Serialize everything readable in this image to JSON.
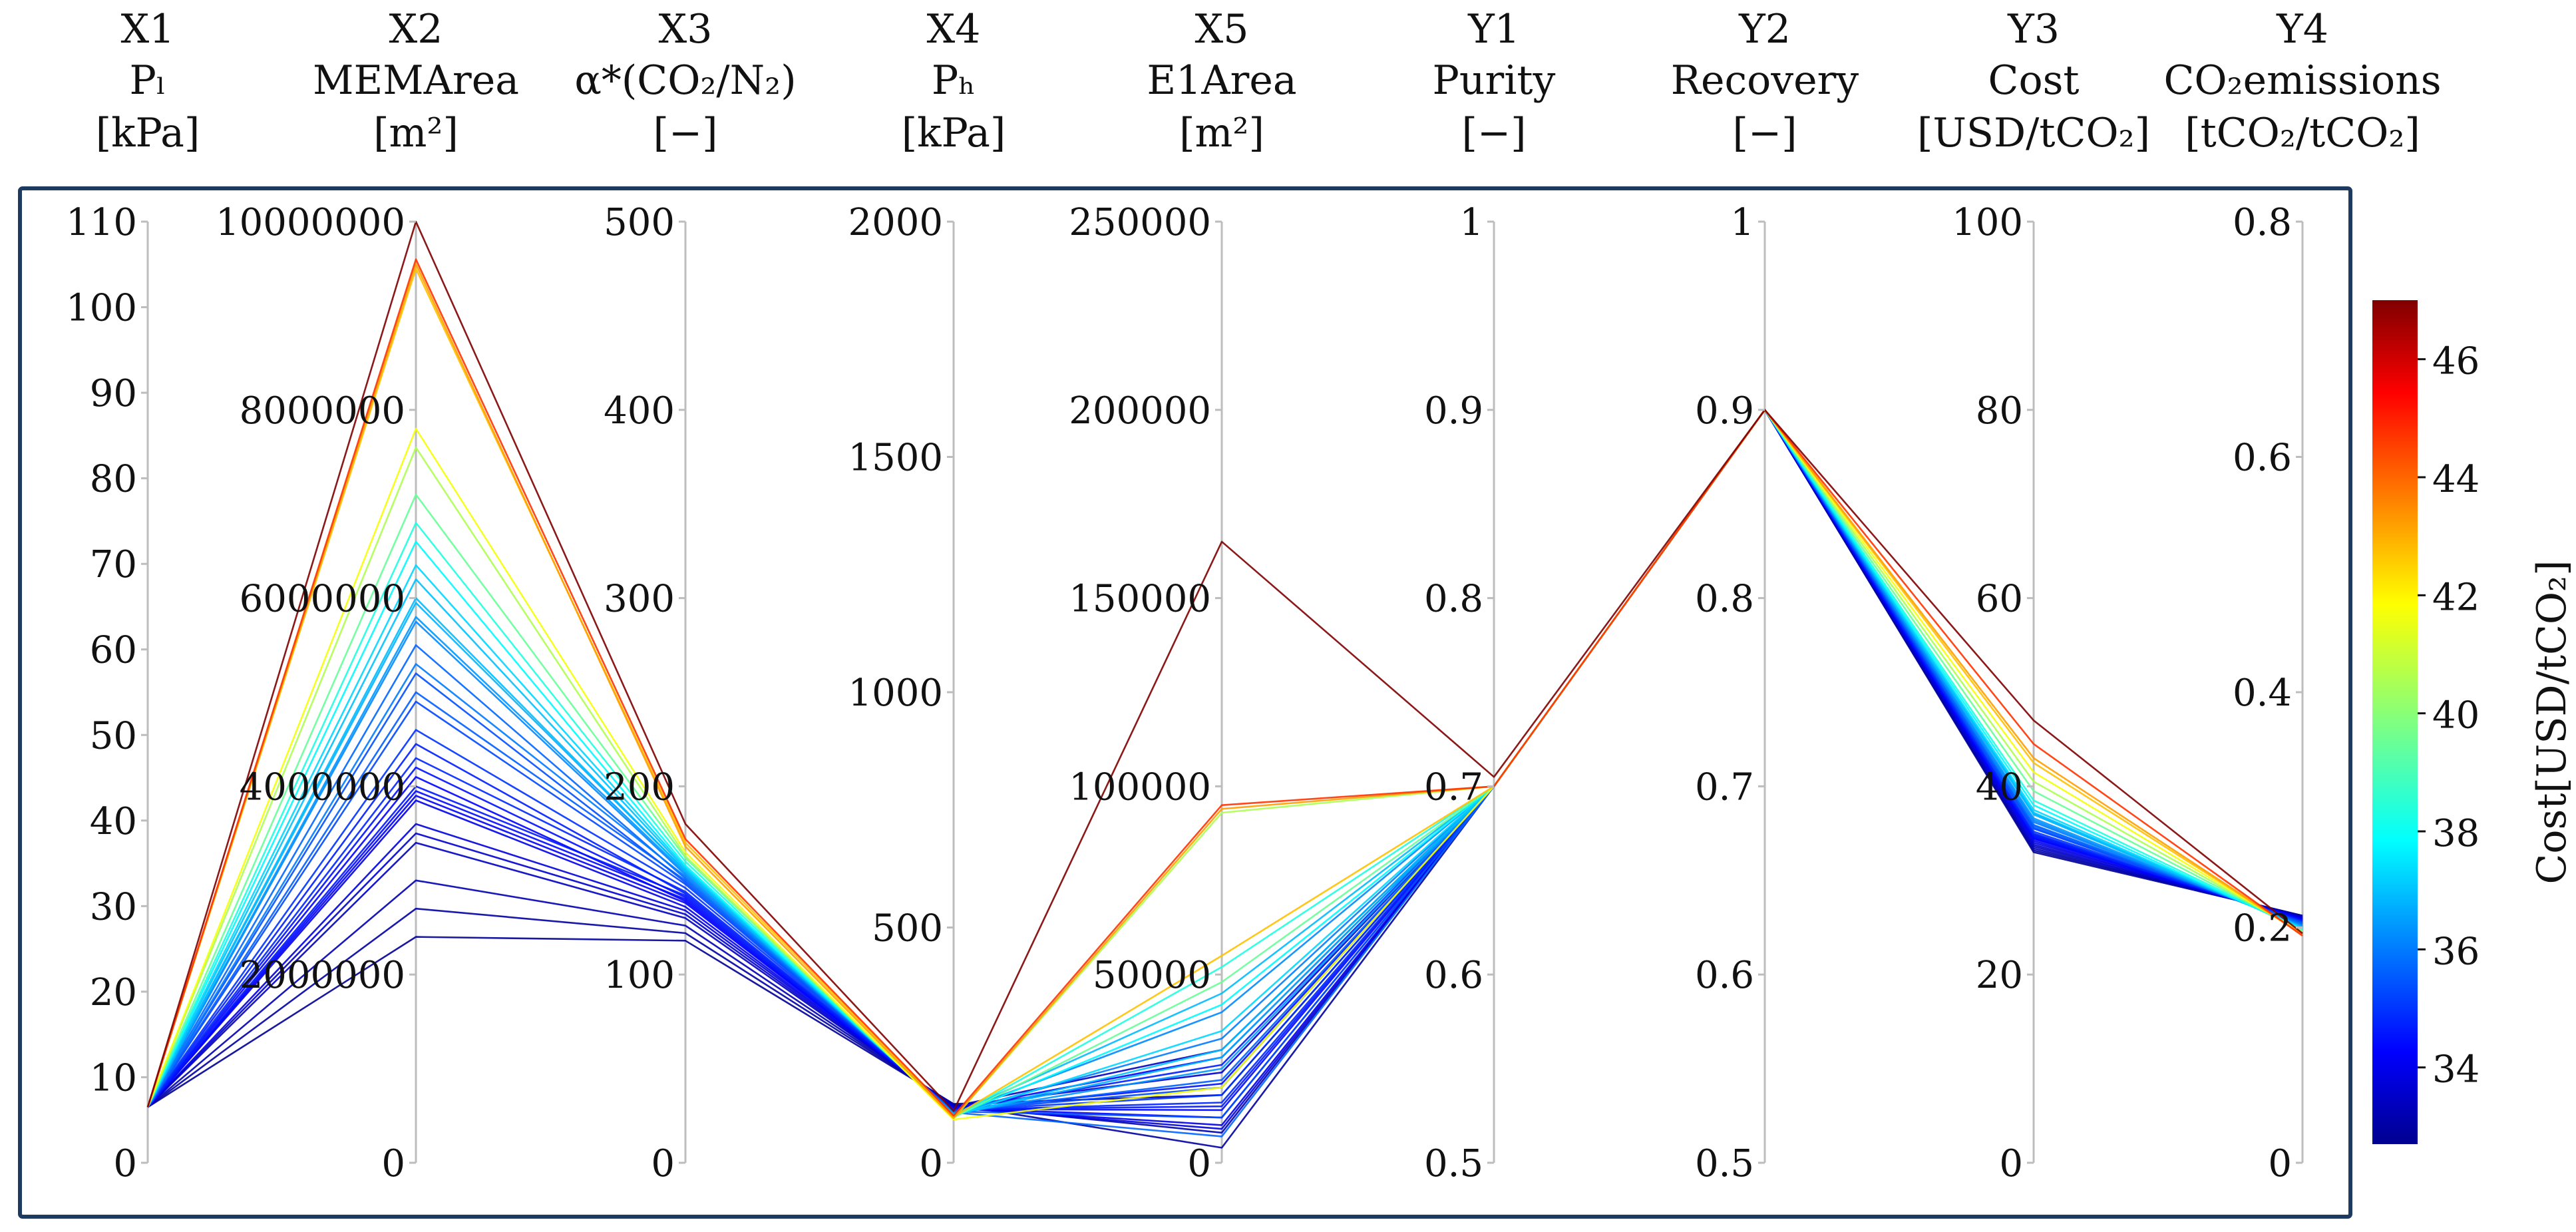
{
  "chart_data": {
    "type": "parallel-coordinates",
    "axes": [
      {
        "id": "X1",
        "name": "P_l",
        "unit": "[kPa]",
        "title_lines": [
          "X1",
          "Pₗ",
          "[kPa]"
        ],
        "range": [
          0,
          110
        ],
        "ticks": [
          0,
          10,
          20,
          30,
          40,
          50,
          60,
          70,
          80,
          90,
          100,
          110
        ]
      },
      {
        "id": "X2",
        "name": "MEMArea",
        "unit": "[m²]",
        "title_lines": [
          "X2",
          "MEMArea",
          "[m²]"
        ],
        "range": [
          0,
          10000000
        ],
        "ticks": [
          0,
          2000000,
          4000000,
          6000000,
          8000000,
          10000000
        ]
      },
      {
        "id": "X3",
        "name": "α*(CO₂/N₂)",
        "unit": "[−]",
        "title_lines": [
          "X3",
          "α*(CO₂/N₂)",
          "[−]"
        ],
        "range": [
          0,
          500
        ],
        "ticks": [
          0,
          100,
          200,
          300,
          400,
          500
        ]
      },
      {
        "id": "X4",
        "name": "P_h",
        "unit": "[kPa]",
        "title_lines": [
          "X4",
          "Pₕ",
          "[kPa]"
        ],
        "range": [
          0,
          2000
        ],
        "ticks": [
          0,
          500,
          1000,
          1500,
          2000
        ]
      },
      {
        "id": "X5",
        "name": "E1Area",
        "unit": "[m²]",
        "title_lines": [
          "X5",
          "E1Area",
          "[m²]"
        ],
        "range": [
          0,
          250000
        ],
        "ticks": [
          0,
          50000,
          100000,
          150000,
          200000,
          250000
        ]
      },
      {
        "id": "Y1",
        "name": "Purity",
        "unit": "[−]",
        "title_lines": [
          "Y1",
          "Purity",
          "[−]"
        ],
        "range": [
          0.5,
          1
        ],
        "ticks": [
          0.5,
          0.6,
          0.7,
          0.8,
          0.9,
          1
        ]
      },
      {
        "id": "Y2",
        "name": "Recovery",
        "unit": "[−]",
        "title_lines": [
          "Y2",
          "Recovery",
          "[−]"
        ],
        "range": [
          0.5,
          1
        ],
        "ticks": [
          0.5,
          0.6,
          0.7,
          0.8,
          0.9,
          1
        ]
      },
      {
        "id": "Y3",
        "name": "Cost",
        "unit": "[USD/tCO₂]",
        "title_lines": [
          "Y3",
          "Cost",
          "[USD/tCO₂]"
        ],
        "range": [
          0,
          100
        ],
        "ticks": [
          0,
          20,
          40,
          60,
          80,
          100
        ]
      },
      {
        "id": "Y4",
        "name": "CO₂emissions",
        "unit": "[tCO₂/tCO₂]",
        "title_lines": [
          "Y4",
          "CO₂emissions",
          "[tCO₂/tCO₂]"
        ],
        "range": [
          0,
          0.8
        ],
        "ticks": [
          0,
          0.2,
          0.4,
          0.6,
          0.8
        ]
      }
    ],
    "colorbar": {
      "label": "Cost[USD/tCO₂]",
      "range": [
        32.7,
        47
      ],
      "ticks": [
        34,
        36,
        38,
        40,
        42,
        44,
        46
      ],
      "colormap": "jet"
    },
    "series": [
      {
        "name": "s01",
        "values": [
          6.5,
          10000000,
          180,
          110,
          165000,
          0.705,
          0.9,
          47.0,
          0.195
        ]
      },
      {
        "name": "s02",
        "values": [
          6.5,
          9600000,
          172,
          100,
          95000,
          0.7,
          0.9,
          44.5,
          0.193
        ]
      },
      {
        "name": "s03",
        "values": [
          6.5,
          9550000,
          168,
          95,
          94000,
          0.7,
          0.9,
          43.0,
          0.194
        ]
      },
      {
        "name": "s04",
        "values": [
          6.5,
          9500000,
          170,
          98,
          55000,
          0.7,
          0.9,
          42.5,
          0.194
        ]
      },
      {
        "name": "s05",
        "values": [
          6.5,
          7800000,
          165,
          92,
          20000,
          0.7,
          0.9,
          41.5,
          0.195
        ]
      },
      {
        "name": "s06",
        "values": [
          6.5,
          7600000,
          163,
          94,
          93000,
          0.7,
          0.9,
          40.5,
          0.196
        ]
      },
      {
        "name": "s07",
        "values": [
          6.5,
          7100000,
          162,
          96,
          48000,
          0.7,
          0.9,
          39.5,
          0.197
        ]
      },
      {
        "name": "s08",
        "values": [
          6.5,
          6800000,
          160,
          97,
          52000,
          0.7,
          0.9,
          38.5,
          0.198
        ]
      },
      {
        "name": "s09",
        "values": [
          6.5,
          6600000,
          158,
          99,
          42000,
          0.7,
          0.9,
          38.0,
          0.198
        ]
      },
      {
        "name": "s10",
        "values": [
          6.5,
          6350000,
          157,
          100,
          35000,
          0.7,
          0.9,
          37.5,
          0.199
        ]
      },
      {
        "name": "s11",
        "values": [
          6.5,
          6200000,
          156,
          101,
          30000,
          0.7,
          0.9,
          37.2,
          0.2
        ]
      },
      {
        "name": "s12",
        "values": [
          6.5,
          5950000,
          155,
          102,
          28000,
          0.7,
          0.9,
          37.0,
          0.2
        ]
      },
      {
        "name": "s13",
        "values": [
          6.5,
          5800000,
          154,
          104,
          25000,
          0.7,
          0.9,
          36.6,
          0.201
        ]
      },
      {
        "name": "s14",
        "values": [
          6.5,
          5750000,
          153,
          105,
          40000,
          0.7,
          0.9,
          36.4,
          0.201
        ]
      },
      {
        "name": "s15",
        "values": [
          6.5,
          5300000,
          152,
          106,
          33000,
          0.7,
          0.9,
          36.2,
          0.202
        ]
      },
      {
        "name": "s16",
        "values": [
          6.5,
          5000000,
          150,
          108,
          22000,
          0.7,
          0.9,
          35.8,
          0.203
        ]
      },
      {
        "name": "s17",
        "values": [
          6.5,
          4900000,
          148,
          110,
          20000,
          0.7,
          0.9,
          35.5,
          0.204
        ]
      },
      {
        "name": "s18",
        "values": [
          6.5,
          4600000,
          146,
          111,
          18000,
          0.7,
          0.9,
          35.2,
          0.205
        ]
      },
      {
        "name": "s19",
        "values": [
          6.5,
          4300000,
          144,
          112,
          16000,
          0.7,
          0.9,
          35.0,
          0.205
        ]
      },
      {
        "name": "s20",
        "values": [
          6.5,
          4000000,
          142,
          113,
          15000,
          0.7,
          0.9,
          34.8,
          0.206
        ]
      },
      {
        "name": "s21",
        "values": [
          6.5,
          3950000,
          140,
          114,
          14000,
          0.7,
          0.9,
          34.6,
          0.206
        ]
      },
      {
        "name": "s22",
        "values": [
          6.5,
          3900000,
          138,
          115,
          12000,
          0.7,
          0.9,
          34.4,
          0.207
        ]
      },
      {
        "name": "s23",
        "values": [
          6.5,
          3850000,
          136,
          116,
          10000,
          0.7,
          0.9,
          34.2,
          0.207
        ]
      },
      {
        "name": "s24",
        "values": [
          6.5,
          3600000,
          134,
          118,
          9000,
          0.7,
          0.9,
          34.0,
          0.208
        ]
      },
      {
        "name": "s25",
        "values": [
          6.5,
          3500000,
          132,
          119,
          24000,
          0.7,
          0.9,
          33.8,
          0.208
        ]
      },
      {
        "name": "s26",
        "values": [
          6.5,
          3400000,
          130,
          120,
          30000,
          0.7,
          0.9,
          33.6,
          0.209
        ]
      },
      {
        "name": "s27",
        "values": [
          6.5,
          3000000,
          126,
          122,
          8000,
          0.7,
          0.9,
          33.4,
          0.209
        ]
      },
      {
        "name": "s28",
        "values": [
          6.5,
          2700000,
          122,
          124,
          4000,
          0.7,
          0.9,
          33.2,
          0.21
        ]
      },
      {
        "name": "s29",
        "values": [
          6.5,
          2400000,
          118,
          125,
          18000,
          0.7,
          0.9,
          33.0,
          0.21
        ]
      },
      {
        "name": "s30",
        "values": [
          6.5,
          5500000,
          151,
          107,
          7000,
          0.7,
          0.9,
          35.9,
          0.203
        ]
      },
      {
        "name": "s31",
        "values": [
          6.5,
          4450000,
          143,
          112,
          26000,
          0.7,
          0.9,
          34.9,
          0.205
        ]
      },
      {
        "name": "s32",
        "values": [
          6.5,
          4200000,
          141,
          113,
          21000,
          0.7,
          0.9,
          34.7,
          0.206
        ]
      },
      {
        "name": "s33",
        "values": [
          6.5,
          6000000,
          155,
          103,
          45000,
          0.7,
          0.9,
          37.1,
          0.2
        ]
      },
      {
        "name": "s34",
        "values": [
          6.5,
          5200000,
          149,
          109,
          12000,
          0.7,
          0.9,
          35.6,
          0.204
        ]
      },
      {
        "name": "s35",
        "values": [
          6.5,
          4100000,
          139,
          114,
          28000,
          0.7,
          0.9,
          34.5,
          0.207
        ]
      }
    ]
  }
}
